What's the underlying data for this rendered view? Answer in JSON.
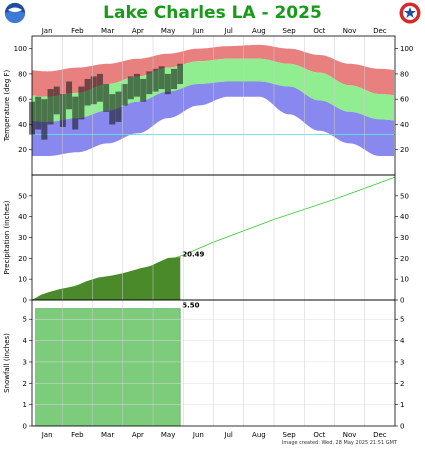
{
  "title": "Lake Charles LA - 2025",
  "footer": "Image created: Wed, 28 May 2025 21:51 GMT",
  "colors": {
    "title": "#1a9a1a",
    "record_high": "#e88080",
    "normal": "#90ee90",
    "record_low": "#8888ee",
    "actual": "#111111",
    "freezing": "#66e0e0",
    "precip_actual": "#4b8a2a",
    "precip_normal": "#b89a80",
    "precip_normal_line": "#33cc33",
    "snowfall": "#7ccc7c"
  },
  "chart_data": [
    {
      "type": "area",
      "name": "temperature",
      "ylabel": "Temperature (deg F)",
      "months": [
        "Jan",
        "Feb",
        "Mar",
        "Apr",
        "May",
        "Jun",
        "Jul",
        "Aug",
        "Sep",
        "Oct",
        "Nov",
        "Dec"
      ],
      "yticks": [
        20,
        40,
        60,
        80,
        100
      ],
      "ylim": [
        0,
        110
      ],
      "freezing_line": 32,
      "normal_high": [
        62,
        65,
        72,
        78,
        85,
        90,
        92,
        92,
        88,
        81,
        71,
        64
      ],
      "normal_low": [
        42,
        45,
        51,
        58,
        66,
        72,
        74,
        74,
        70,
        59,
        50,
        44
      ],
      "record_high": [
        82,
        85,
        88,
        92,
        96,
        100,
        102,
        103,
        100,
        95,
        88,
        84
      ],
      "record_low": [
        15,
        18,
        25,
        33,
        45,
        55,
        62,
        62,
        48,
        35,
        25,
        15
      ],
      "actual_high": [
        58,
        62,
        60,
        68,
        70,
        64,
        74,
        62,
        70,
        76,
        78,
        80,
        72,
        64,
        66,
        72,
        78,
        80,
        76,
        82,
        84,
        86,
        80,
        84,
        88
      ],
      "actual_low": [
        32,
        36,
        28,
        40,
        48,
        38,
        52,
        36,
        44,
        55,
        56,
        58,
        50,
        40,
        42,
        55,
        60,
        62,
        58,
        64,
        66,
        68,
        64,
        68,
        72
      ]
    },
    {
      "type": "line",
      "name": "precipitation",
      "ylabel": "Precipitation (inches)",
      "yticks": [
        0,
        10,
        20,
        30,
        40,
        50
      ],
      "ylim": [
        0,
        60
      ],
      "label": "20.49",
      "normal_cumulative": [
        0,
        5.1,
        8.8,
        12.6,
        16.5,
        21.6,
        27.8,
        33.2,
        38.7,
        43.5,
        48.4,
        53.6,
        59.0
      ],
      "actual_cumulative": [
        [
          0,
          0
        ],
        [
          0.3,
          2.5
        ],
        [
          0.6,
          4.0
        ],
        [
          0.9,
          5.2
        ],
        [
          1.0,
          5.5
        ],
        [
          1.4,
          6.5
        ],
        [
          1.8,
          9.0
        ],
        [
          2.2,
          10.8
        ],
        [
          2.6,
          11.6
        ],
        [
          3.0,
          12.8
        ],
        [
          3.3,
          14.0
        ],
        [
          3.6,
          15.3
        ],
        [
          3.9,
          16.2
        ],
        [
          4.2,
          18.3
        ],
        [
          4.5,
          20.2
        ],
        [
          4.9,
          20.49
        ]
      ]
    },
    {
      "type": "area",
      "name": "snowfall",
      "ylabel": "Snowfall (inches)",
      "yticks": [
        0,
        1,
        2,
        3,
        4,
        5
      ],
      "ylim": [
        0,
        5.9
      ],
      "label": "5.50",
      "actual_cumulative": [
        [
          0,
          0
        ],
        [
          0.12,
          0
        ],
        [
          0.12,
          5.5
        ],
        [
          4.9,
          5.5
        ]
      ]
    }
  ]
}
